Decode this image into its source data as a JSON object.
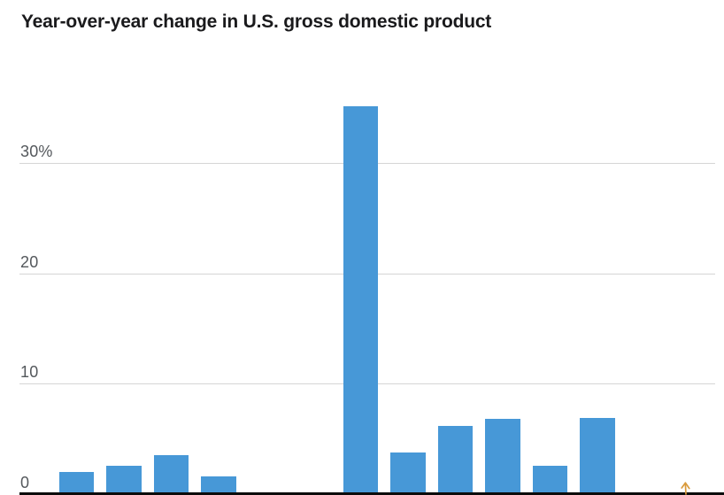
{
  "chart_data": {
    "type": "bar",
    "title": "Year-over-year change in U.S. gross domestic product",
    "xlabel": "",
    "ylabel": "",
    "unit": "percent",
    "bar_color": "#4798d7",
    "axis_color": "#0c0c0c",
    "gridline_color": "#d5d5d5",
    "tick_label_color": "#54585c",
    "title_color": "#1a1a1c",
    "grid": true,
    "legend": "none",
    "y_axis": {
      "ticks": [
        {
          "label": "30%",
          "value": 30
        },
        {
          "label": "20",
          "value": 20
        },
        {
          "label": "10",
          "value": 10
        },
        {
          "label": "0",
          "value": 0
        }
      ],
      "visible_range": [
        0,
        36
      ]
    },
    "num_slots": 12,
    "bars": [
      {
        "slot": 0,
        "value": 2.0
      },
      {
        "slot": 1,
        "value": 2.6
      },
      {
        "slot": 2,
        "value": 3.5
      },
      {
        "slot": 3,
        "value": 1.6
      },
      {
        "slot": 6,
        "value": 35.1
      },
      {
        "slot": 7,
        "value": 3.8
      },
      {
        "slot": 8,
        "value": 6.2
      },
      {
        "slot": 9,
        "value": 6.8
      },
      {
        "slot": 10,
        "value": 2.6
      },
      {
        "slot": 11,
        "value": 6.9
      }
    ]
  },
  "annotation": {
    "arrow_icon_color": "#d99a3b"
  }
}
